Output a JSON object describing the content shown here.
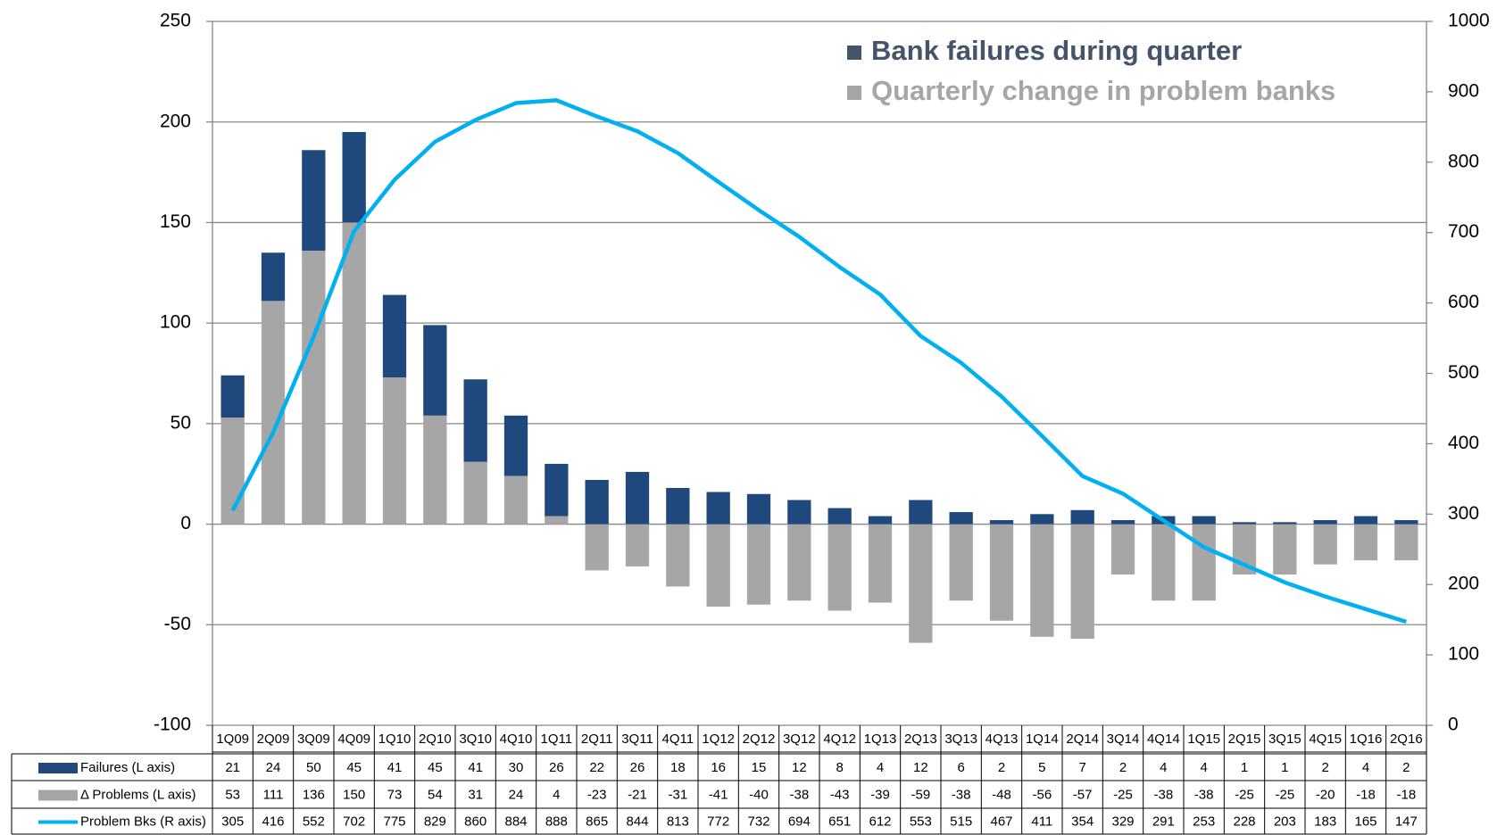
{
  "chart_data": {
    "type": "bar",
    "categories": [
      "1Q09",
      "2Q09",
      "3Q09",
      "4Q09",
      "1Q10",
      "2Q10",
      "3Q10",
      "4Q10",
      "1Q11",
      "2Q11",
      "3Q11",
      "4Q11",
      "1Q12",
      "2Q12",
      "3Q12",
      "4Q12",
      "1Q13",
      "2Q13",
      "3Q13",
      "4Q13",
      "1Q14",
      "2Q14",
      "3Q14",
      "4Q14",
      "1Q15",
      "2Q15",
      "3Q15",
      "4Q15",
      "1Q16",
      "2Q16"
    ],
    "series": [
      {
        "name": "Failures (L axis)",
        "type": "bar",
        "color": "#1f497d",
        "values": [
          21,
          24,
          50,
          45,
          41,
          45,
          41,
          30,
          26,
          22,
          26,
          18,
          16,
          15,
          12,
          8,
          4,
          12,
          6,
          2,
          5,
          7,
          2,
          4,
          4,
          1,
          1,
          2,
          4,
          2
        ]
      },
      {
        "name": "Δ Problems (L axis)",
        "type": "bar",
        "color": "#a6a6a6",
        "values": [
          53,
          111,
          136,
          150,
          73,
          54,
          31,
          24,
          4,
          -23,
          -21,
          -31,
          -41,
          -40,
          -38,
          -43,
          -39,
          -59,
          -38,
          -48,
          -56,
          -57,
          -25,
          -38,
          -38,
          -25,
          -25,
          -20,
          -18,
          -18
        ]
      },
      {
        "name": "Problem Bks (R axis)",
        "type": "line",
        "axis": "y2",
        "color": "#00b0f0",
        "values": [
          305,
          416,
          552,
          702,
          775,
          829,
          860,
          884,
          888,
          865,
          844,
          813,
          772,
          732,
          694,
          651,
          612,
          553,
          515,
          467,
          411,
          354,
          329,
          291,
          253,
          228,
          203,
          183,
          165,
          147
        ]
      }
    ],
    "legend_labels": [
      "Bank failures during quarter",
      "Quarterly change in problem banks"
    ],
    "ylim": [
      -100,
      250
    ],
    "yticks": [
      -100,
      -50,
      0,
      50,
      100,
      150,
      200,
      250
    ],
    "y2lim": [
      0,
      1000
    ],
    "y2ticks": [
      0,
      100,
      200,
      300,
      400,
      500,
      600,
      700,
      800,
      900,
      1000
    ],
    "grid": true
  }
}
